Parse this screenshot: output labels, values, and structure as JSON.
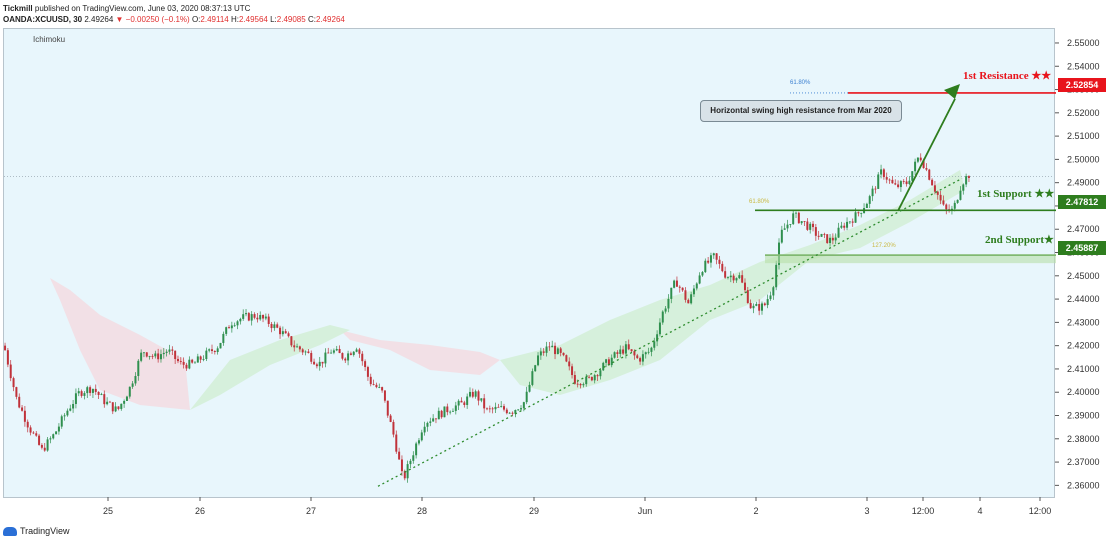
{
  "header": {
    "publisher": "Tickmill",
    "published_text": "published on TradingView.com, June 03, 2020 08:37:13 UTC",
    "symbol": "OANDA:XCUUSD, 30",
    "last": "2.49264",
    "change": "▼ −0.00250 (−0.1%)",
    "o_label": "O:",
    "o_value": "2.49114",
    "h_label": "H:",
    "h_value": "2.49564",
    "l_label": "L:",
    "l_value": "2.49085",
    "c_label": "C:",
    "c_value": "2.49264"
  },
  "indicator_label": "Ichimoku",
  "annotations": {
    "callout": "Horizontal swing high resistance from Mar 2020",
    "resistance1": "1st Resistance ★★",
    "support1": "1st Support ★★",
    "support2": "2nd Support★",
    "fib_resistance": "61.80%",
    "fib_support1": "61.80%",
    "fib_support2": "127.20%"
  },
  "price_tags": {
    "resistance1": "2.52854",
    "support1": "2.47812",
    "support2": "2.45887",
    "resistance_color": "#e8141c",
    "support_color": "#2e7d1e"
  },
  "footer": {
    "brand": "TradingView"
  },
  "chart_data": {
    "type": "candlestick",
    "symbol": "OANDA:XCUUSD",
    "interval": "30",
    "ylim": [
      2.355,
      2.556
    ],
    "y_ticks": [
      "2.36000",
      "2.37000",
      "2.38000",
      "2.39000",
      "2.40000",
      "2.41000",
      "2.42000",
      "2.43000",
      "2.44000",
      "2.45000",
      "2.46000",
      "2.47000",
      "2.48000",
      "2.49000",
      "2.50000",
      "2.51000",
      "2.52000",
      "2.53000",
      "2.54000",
      "2.55000"
    ],
    "x_ticks": [
      "25",
      "26",
      "27",
      "28",
      "29",
      "Jun",
      "2",
      "3",
      "12:00",
      "4",
      "12:00"
    ],
    "levels": [
      {
        "name": "1st Resistance",
        "value": 2.52854,
        "color": "#e8141c"
      },
      {
        "name": "1st Support",
        "value": 2.47812,
        "color": "#2e7d1e"
      },
      {
        "name": "2nd Support",
        "value": 2.45887,
        "color": "#2e7d1e"
      }
    ],
    "last_price": 2.49264,
    "path": [
      [
        0,
        2.42
      ],
      [
        0.6,
        2.397
      ],
      [
        1.2,
        2.385
      ],
      [
        1.8,
        2.375
      ],
      [
        2.4,
        2.382
      ],
      [
        3.0,
        2.392
      ],
      [
        3.6,
        2.4
      ],
      [
        4.2,
        2.402
      ],
      [
        4.8,
        2.396
      ],
      [
        5.4,
        2.392
      ],
      [
        6.0,
        2.402
      ],
      [
        6.6,
        2.418
      ],
      [
        7.2,
        2.415
      ],
      [
        7.8,
        2.418
      ],
      [
        8.4,
        2.412
      ],
      [
        9.0,
        2.412
      ],
      [
        9.6,
        2.416
      ],
      [
        10.2,
        2.42
      ],
      [
        10.8,
        2.43
      ],
      [
        11.4,
        2.432
      ],
      [
        12.0,
        2.433
      ],
      [
        12.6,
        2.43
      ],
      [
        13.2,
        2.426
      ],
      [
        13.8,
        2.42
      ],
      [
        14.4,
        2.417
      ],
      [
        15.0,
        2.412
      ],
      [
        15.6,
        2.418
      ],
      [
        16.2,
        2.415
      ],
      [
        16.8,
        2.42
      ],
      [
        17.4,
        2.405
      ],
      [
        18.0,
        2.4
      ],
      [
        18.6,
        2.38
      ],
      [
        19.0,
        2.362
      ],
      [
        19.4,
        2.372
      ],
      [
        20.0,
        2.387
      ],
      [
        20.6,
        2.39
      ],
      [
        21.2,
        2.393
      ],
      [
        21.8,
        2.395
      ],
      [
        22.4,
        2.4
      ],
      [
        23.0,
        2.392
      ],
      [
        23.6,
        2.393
      ],
      [
        24.2,
        2.392
      ],
      [
        24.8,
        2.396
      ],
      [
        25.4,
        2.415
      ],
      [
        26.0,
        2.42
      ],
      [
        26.6,
        2.415
      ],
      [
        27.2,
        2.405
      ],
      [
        27.8,
        2.405
      ],
      [
        28.4,
        2.41
      ],
      [
        29.0,
        2.415
      ],
      [
        29.6,
        2.419
      ],
      [
        30.2,
        2.414
      ],
      [
        30.8,
        2.418
      ],
      [
        31.4,
        2.435
      ],
      [
        32.0,
        2.448
      ],
      [
        32.6,
        2.438
      ],
      [
        33.2,
        2.453
      ],
      [
        33.8,
        2.458
      ],
      [
        34.4,
        2.45
      ],
      [
        35.0,
        2.45
      ],
      [
        35.6,
        2.436
      ],
      [
        36.2,
        2.437
      ],
      [
        36.6,
        2.445
      ],
      [
        37.0,
        2.468
      ],
      [
        37.6,
        2.476
      ],
      [
        38.2,
        2.472
      ],
      [
        38.8,
        2.467
      ],
      [
        39.4,
        2.465
      ],
      [
        40.0,
        2.472
      ],
      [
        40.6,
        2.476
      ],
      [
        41.2,
        2.483
      ],
      [
        41.8,
        2.495
      ],
      [
        42.4,
        2.488
      ],
      [
        43.0,
        2.49
      ],
      [
        43.6,
        2.502
      ],
      [
        44.2,
        2.49
      ],
      [
        44.8,
        2.478
      ],
      [
        45.2,
        2.478
      ],
      [
        45.6,
        2.49
      ],
      [
        46.0,
        2.494
      ]
    ]
  }
}
